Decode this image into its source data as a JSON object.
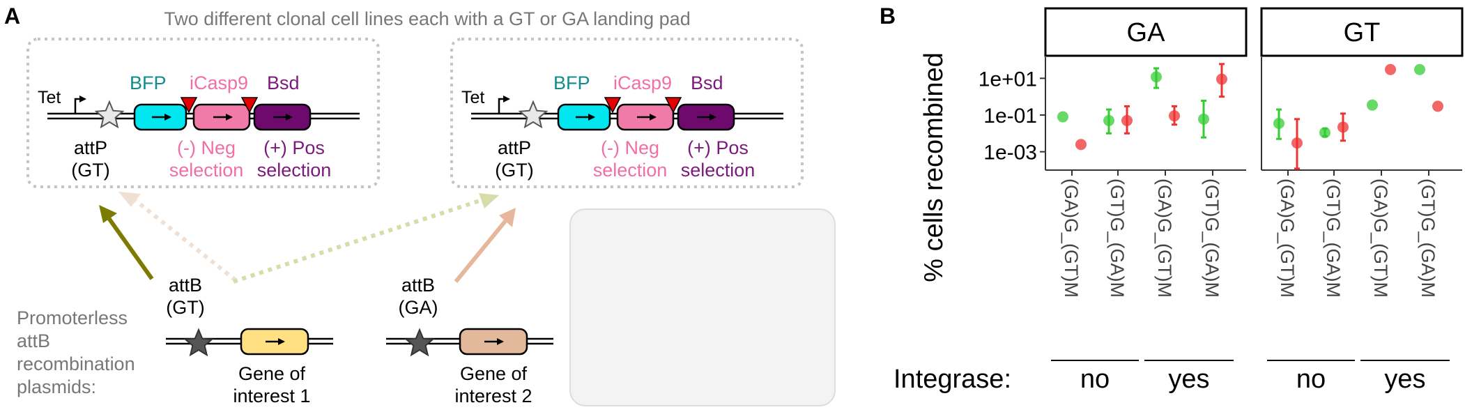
{
  "colors": {
    "bfp": "#00e5ee",
    "icasp9": "#f07aa8",
    "bsd": "#6e0a6e",
    "bfp_text": "#138b8b",
    "icasp9_text": "#ef6fa6",
    "bsd_text": "#7a1a7a",
    "goi1": "#ffe082",
    "goi2": "#e2b99b",
    "gt_arrow": "#7d7a00",
    "ga_arrow": "#e7b79c",
    "red_marker": "#e60000",
    "green_point": "#33cc33",
    "red_point": "#ee3333",
    "grey_text": "#777777"
  },
  "panelA": {
    "label": "A",
    "header": "Two different clonal cell lines each with a GT or GA landing pad",
    "pads": [
      {
        "tet": "Tet",
        "bfp": "BFP",
        "icasp9": "iCasp9",
        "bsd": "Bsd",
        "attp_name": "attP",
        "attp_type": "(GT)",
        "neg_line1": "(-) Neg",
        "neg_line2": "selection",
        "pos_line1": "(+) Pos",
        "pos_line2": "selection"
      },
      {
        "tet": "Tet",
        "bfp": "BFP",
        "icasp9": "iCasp9",
        "bsd": "Bsd",
        "attp_name": "attP",
        "attp_type": "(GT)",
        "neg_line1": "(-) Neg",
        "neg_line2": "selection",
        "pos_line1": "(+) Pos",
        "pos_line2": "selection"
      }
    ],
    "plasmid_label": [
      "Promoterless",
      "attB",
      "recombination",
      "plasmids:"
    ],
    "plasmids": [
      {
        "attb_name": "attB",
        "attb_type": "(GT)",
        "gene_line1": "Gene of",
        "gene_line2": "interest 1"
      },
      {
        "attb_name": "attB",
        "attb_type": "(GA)",
        "gene_line1": "Gene of",
        "gene_line2": "interest 2"
      }
    ]
  },
  "panelB": {
    "label": "B",
    "ylabel": "% cells recombined",
    "integrase_label": "Integrase:"
  },
  "chart_data": {
    "type": "scatter",
    "ylabel": "% cells recombined",
    "yscale": "log10",
    "ylim": [
      0.0001,
      100
    ],
    "yticks": [
      {
        "value": 10,
        "label": "1e+01"
      },
      {
        "value": 0.1,
        "label": "1e-01"
      },
      {
        "value": 0.001,
        "label": "1e-03"
      }
    ],
    "categories": [
      "(GA)G_(GT)M",
      "(GT)G_(GA)M",
      "(GA)G_(GT)M",
      "(GT)G_(GA)M"
    ],
    "integrase_groups": [
      {
        "label": "no",
        "categories": [
          0,
          1
        ]
      },
      {
        "label": "yes",
        "categories": [
          2,
          3
        ]
      }
    ],
    "facets": [
      {
        "name": "GA",
        "points": [
          {
            "cat": 0,
            "color": "green",
            "y": 0.08,
            "lo": 0.08,
            "hi": 0.08
          },
          {
            "cat": 0,
            "color": "red",
            "y": 0.0025,
            "lo": 0.0025,
            "hi": 0.0025
          },
          {
            "cat": 1,
            "color": "green",
            "y": 0.05,
            "lo": 0.01,
            "hi": 0.2
          },
          {
            "cat": 1,
            "color": "red",
            "y": 0.05,
            "lo": 0.01,
            "hi": 0.3
          },
          {
            "cat": 2,
            "color": "green",
            "y": 12,
            "lo": 3,
            "hi": 35
          },
          {
            "cat": 2,
            "color": "red",
            "y": 0.09,
            "lo": 0.03,
            "hi": 0.3
          },
          {
            "cat": 3,
            "color": "green",
            "y": 0.06,
            "lo": 0.006,
            "hi": 0.6
          },
          {
            "cat": 3,
            "color": "red",
            "y": 9,
            "lo": 1,
            "hi": 60
          }
        ]
      },
      {
        "name": "GT",
        "points": [
          {
            "cat": 0,
            "color": "green",
            "y": 0.035,
            "lo": 0.005,
            "hi": 0.2
          },
          {
            "cat": 0,
            "color": "red",
            "y": 0.003,
            "lo": 0.00012,
            "hi": 0.06
          },
          {
            "cat": 1,
            "color": "green",
            "y": 0.011,
            "lo": 0.007,
            "hi": 0.018
          },
          {
            "cat": 1,
            "color": "red",
            "y": 0.022,
            "lo": 0.004,
            "hi": 0.12
          },
          {
            "cat": 2,
            "color": "green",
            "y": 0.35,
            "lo": 0.35,
            "hi": 0.35
          },
          {
            "cat": 2,
            "color": "red",
            "y": 30,
            "lo": 30,
            "hi": 30
          },
          {
            "cat": 3,
            "color": "green",
            "y": 30,
            "lo": 30,
            "hi": 30
          },
          {
            "cat": 3,
            "color": "red",
            "y": 0.3,
            "lo": 0.3,
            "hi": 0.3
          }
        ]
      }
    ]
  }
}
